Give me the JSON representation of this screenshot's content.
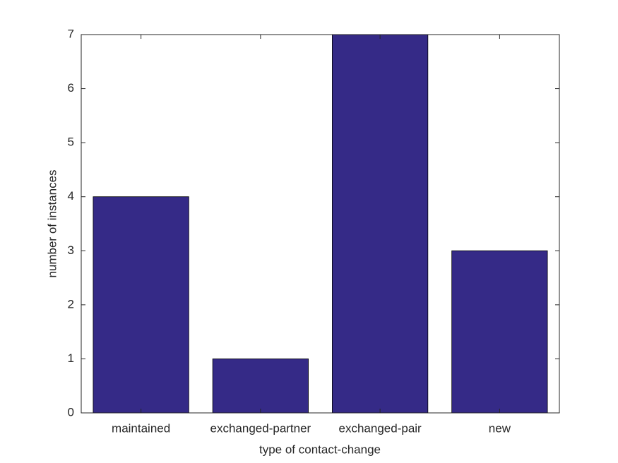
{
  "chart_data": {
    "type": "bar",
    "categories": [
      "maintained",
      "exchanged-partner",
      "exchanged-pair",
      "new"
    ],
    "values": [
      4,
      1,
      7,
      3
    ],
    "color": "#352a87",
    "xlabel": "type of contact-change",
    "ylabel": "number of instances",
    "ylim": [
      0,
      7
    ],
    "yticks": [
      0,
      1,
      2,
      3,
      4,
      5,
      6,
      7
    ],
    "grid": false
  }
}
